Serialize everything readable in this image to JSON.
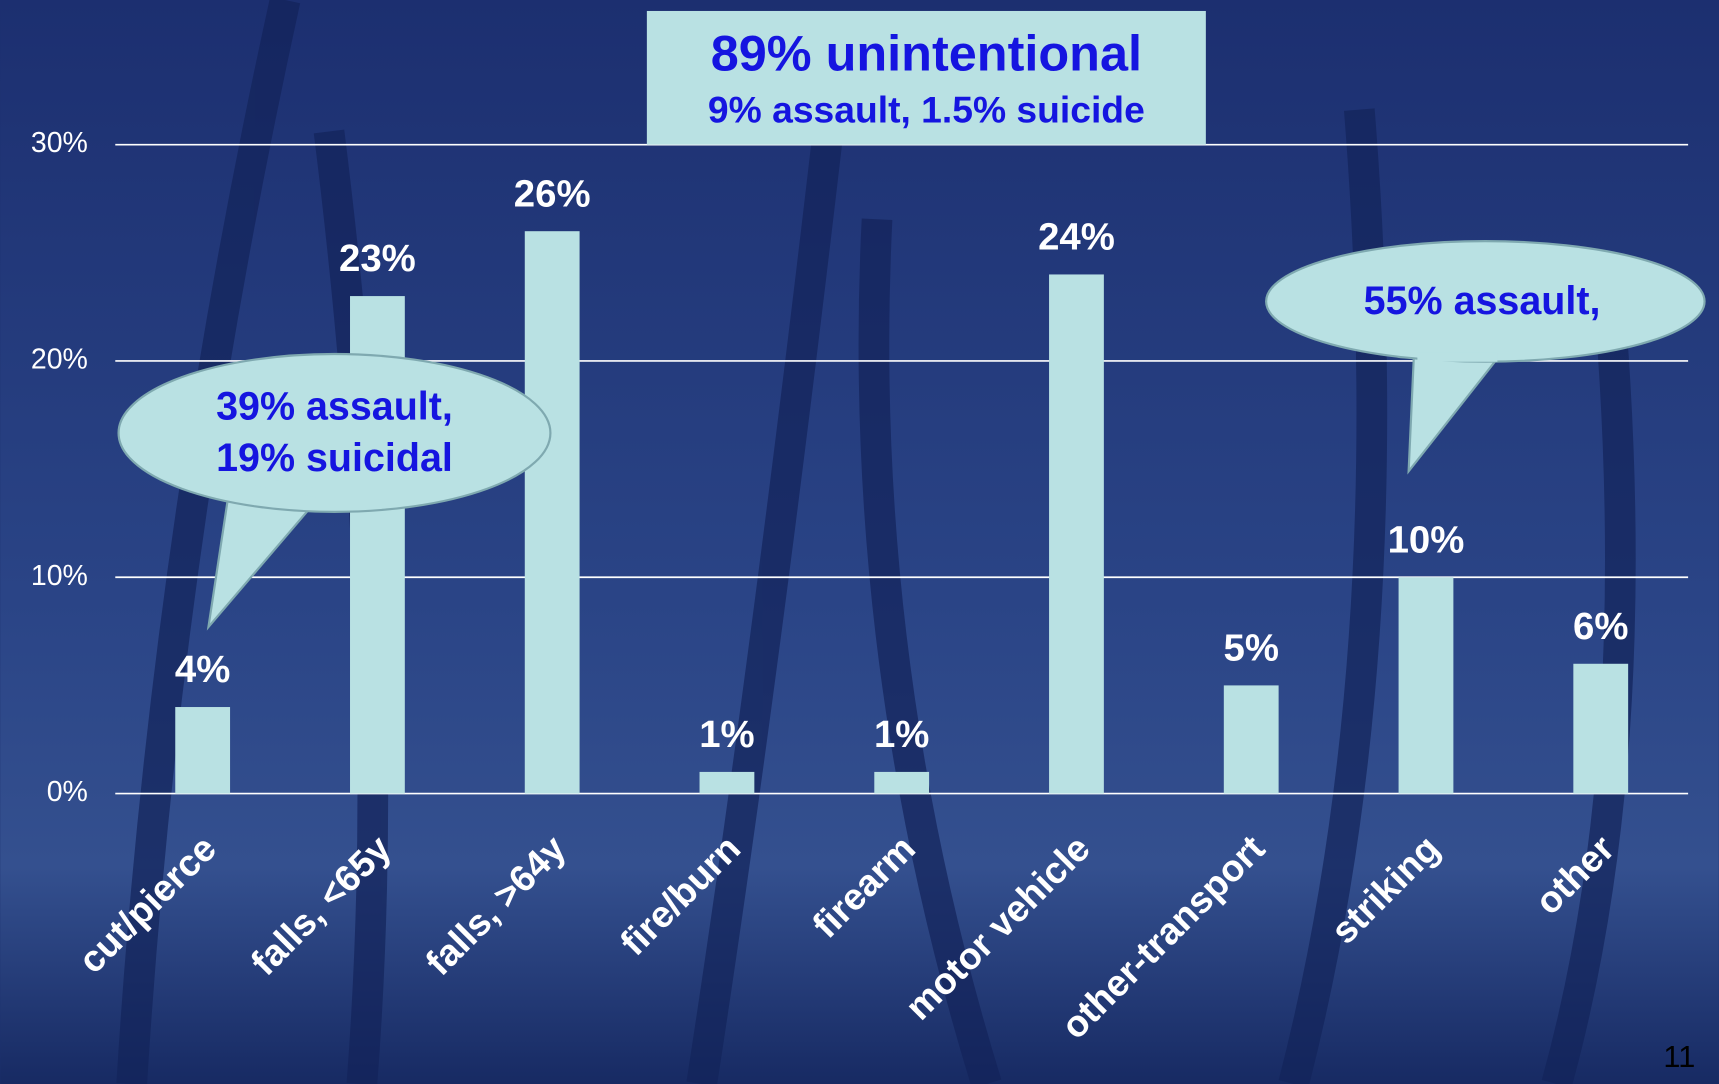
{
  "chart_data": {
    "type": "bar",
    "categories": [
      "cut/pierce",
      "falls, <65y",
      "falls, >64y",
      "fire/burn",
      "firearm",
      "motor vehicle",
      "other-transport",
      "striking",
      "other"
    ],
    "values": [
      4,
      23,
      26,
      1,
      1,
      24,
      5,
      10,
      6
    ],
    "value_labels": [
      "4%",
      "23%",
      "26%",
      "1%",
      "1%",
      "24%",
      "5%",
      "10%",
      "6%"
    ],
    "color": "#b9e1e3",
    "ylim": [
      0,
      30
    ],
    "yticks": [
      {
        "value": 0,
        "label": "0%"
      },
      {
        "value": 10,
        "label": "10%"
      },
      {
        "value": 20,
        "label": "20%"
      },
      {
        "value": 30,
        "label": "30%"
      }
    ],
    "grid": true,
    "annotations": [
      "89% unintentional",
      "9% assault, 1.5% suicide",
      "39% assault,",
      "19% suicidal",
      "55% assault,"
    ],
    "page_number": "11"
  }
}
